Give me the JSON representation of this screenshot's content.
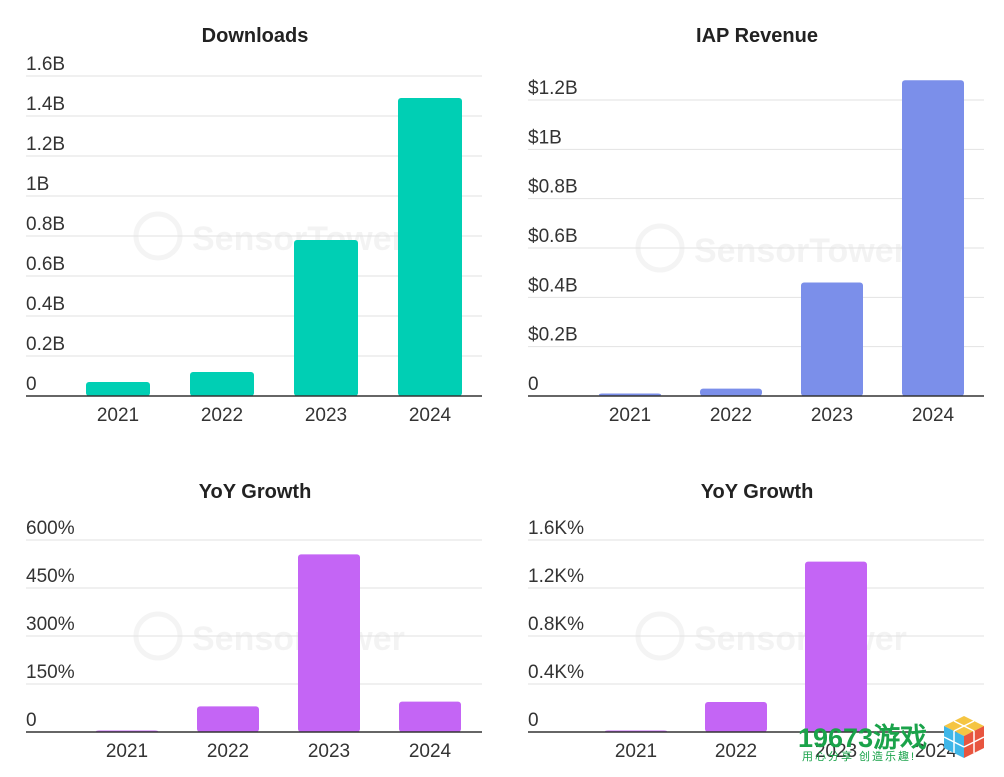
{
  "colors": {
    "downloads": "#00cfb4",
    "revenue": "#7b8fea",
    "growth": "#c465f5"
  },
  "watermark": "SensorTower",
  "logo": {
    "main": "19673游戏",
    "sub": "用心分享 创造乐趣!",
    "icon": "cube-icon"
  },
  "chart_data": [
    {
      "type": "bar",
      "title": "Downloads",
      "categories": [
        "2021",
        "2022",
        "2023",
        "2024"
      ],
      "values": [
        0.07,
        0.12,
        0.78,
        1.49
      ],
      "ylim": [
        0,
        1.6
      ],
      "yticks": [
        0,
        0.2,
        0.4,
        0.6,
        0.8,
        1.0,
        1.2,
        1.4,
        1.6
      ],
      "ytick_labels": [
        "0",
        "0.2B",
        "0.4B",
        "0.6B",
        "0.8B",
        "1B",
        "1.2B",
        "1.4B",
        "1.6B"
      ],
      "color": "#00cfb4",
      "grid": true
    },
    {
      "type": "bar",
      "title": "IAP Revenue",
      "categories": [
        "2021",
        "2022",
        "2023",
        "2024"
      ],
      "values": [
        0.01,
        0.03,
        0.46,
        1.28
      ],
      "ylim": [
        0,
        1.2
      ],
      "yticks": [
        0,
        0.2,
        0.4,
        0.6,
        0.8,
        1.0,
        1.2
      ],
      "ytick_labels": [
        "0",
        "$0.2B",
        "$0.4B",
        "$0.6B",
        "$0.8B",
        "$1B",
        "$1.2B"
      ],
      "color": "#7b8fea",
      "grid": true
    },
    {
      "type": "bar",
      "title": "YoY Growth",
      "categories": [
        "2021",
        "2022",
        "2023",
        "2024"
      ],
      "values": [
        2,
        80,
        555,
        95
      ],
      "ylim": [
        0,
        600
      ],
      "yticks": [
        0,
        150,
        300,
        450,
        600
      ],
      "ytick_labels": [
        "0",
        "150%",
        "300%",
        "450%",
        "600%"
      ],
      "color": "#c465f5",
      "grid": true
    },
    {
      "type": "bar",
      "title": "YoY Growth",
      "categories": [
        "2021",
        "2022",
        "2023",
        "2024"
      ],
      "values": [
        0.005,
        0.25,
        1.42,
        null
      ],
      "ylim": [
        0,
        1.6
      ],
      "yticks": [
        0,
        0.4,
        0.8,
        1.2,
        1.6
      ],
      "ytick_labels": [
        "0",
        "0.4K%",
        "0.8K%",
        "1.2K%",
        "1.6K%"
      ],
      "color": "#c465f5",
      "grid": true
    }
  ]
}
